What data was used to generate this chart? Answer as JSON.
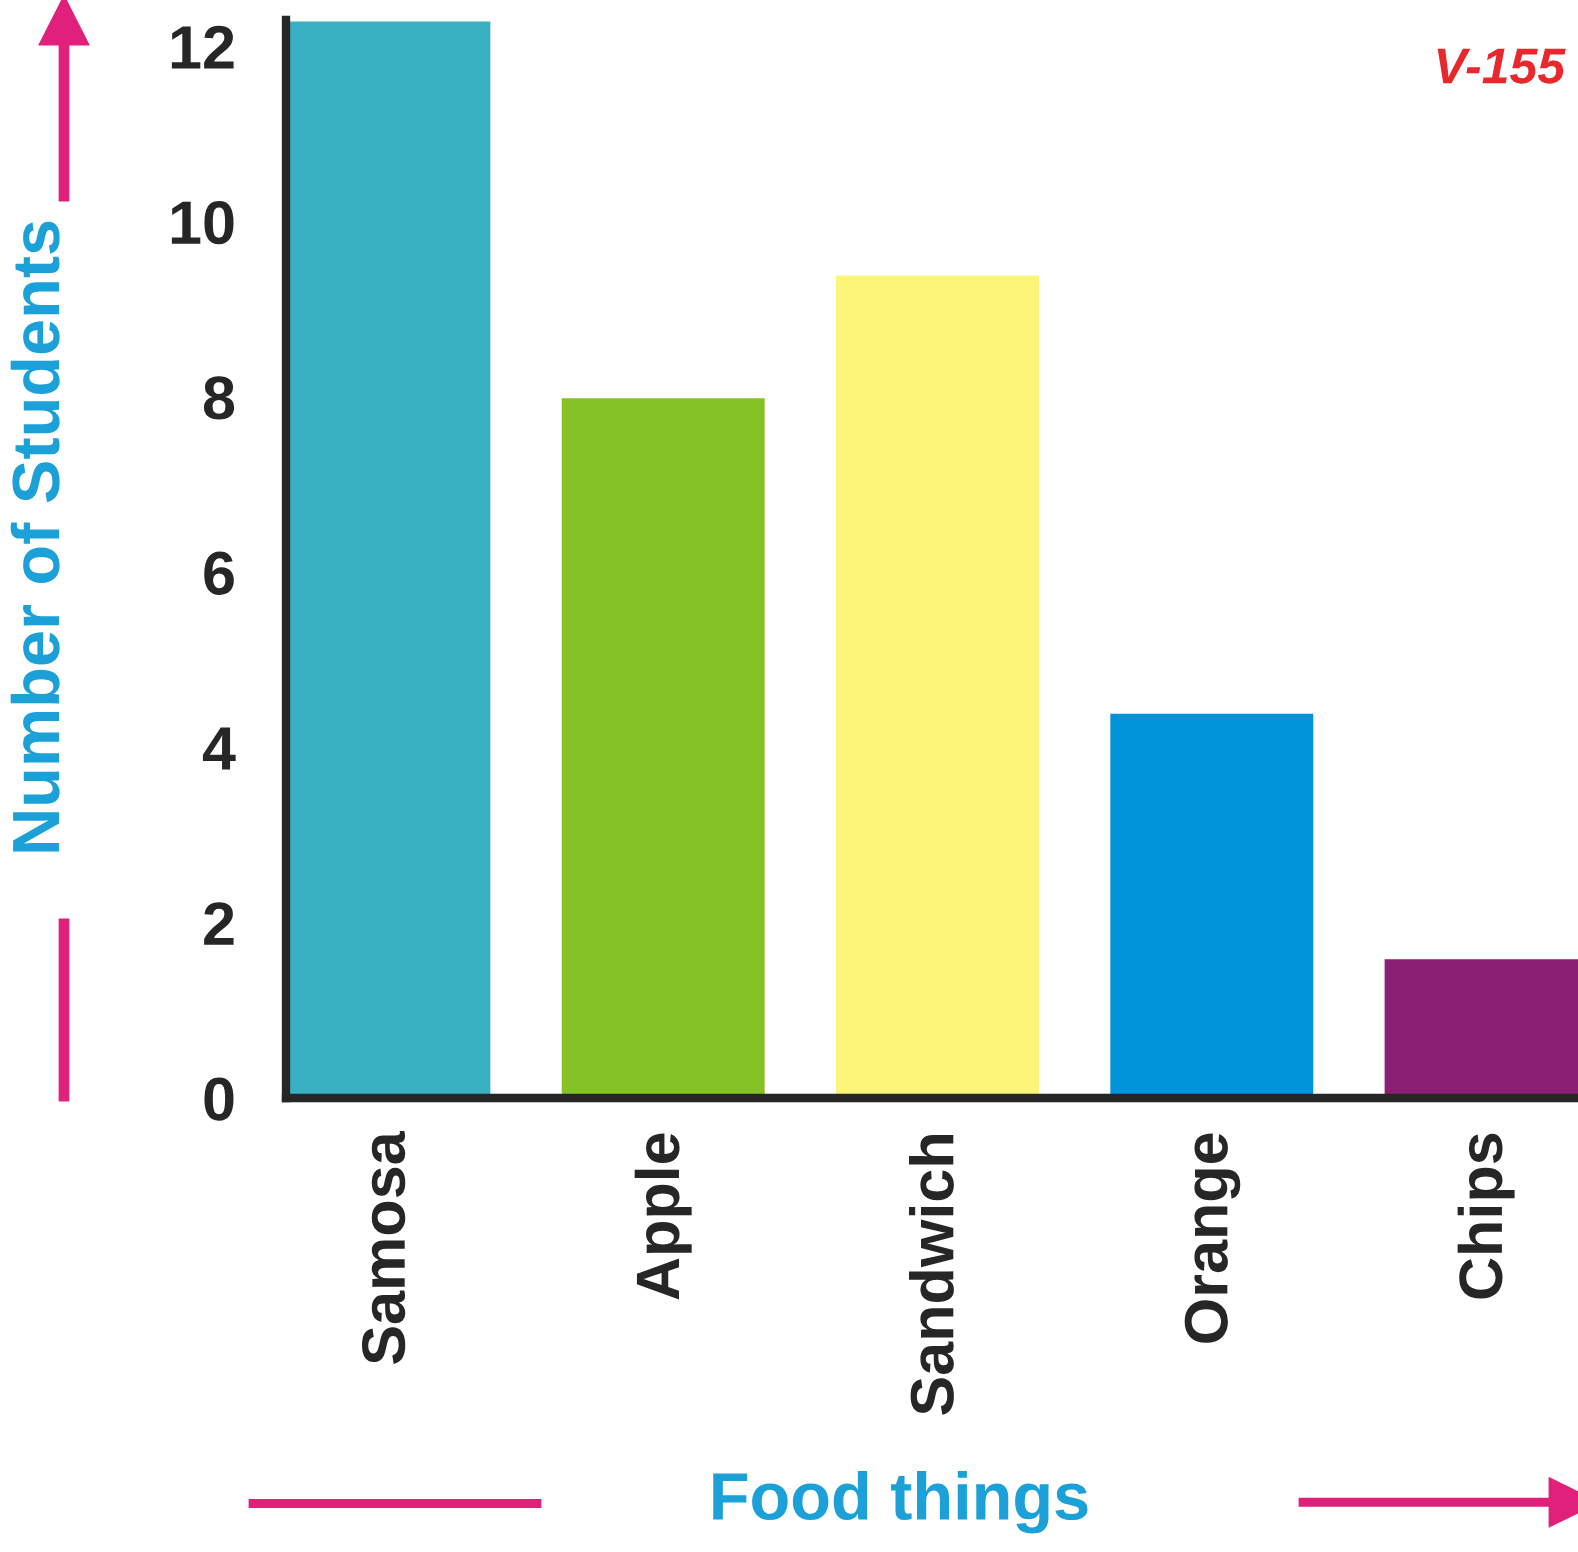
{
  "chart_data": {
    "type": "bar",
    "xlabel": "Food things",
    "ylabel": "Number of Students",
    "categories": [
      "Samosa",
      "Apple",
      "Sandwich",
      "Orange",
      "Chips"
    ],
    "values": [
      12.3,
      8,
      9.4,
      4.4,
      1.6
    ],
    "colors": [
      "#3ab0c3",
      "#84c225",
      "#fbf57a",
      "#0094da",
      "#8b1f73"
    ],
    "ylim": [
      0,
      12.3
    ],
    "yticks": [
      0,
      2,
      4,
      6,
      8,
      10,
      12
    ],
    "grid": false,
    "annotations": [
      "V-155"
    ]
  }
}
